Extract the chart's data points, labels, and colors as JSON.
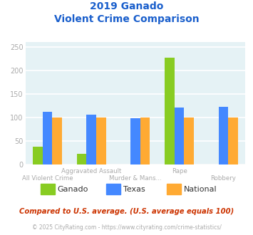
{
  "title_line1": "2019 Ganado",
  "title_line2": "Violent Crime Comparison",
  "categories": [
    "All Violent Crime",
    "Aggravated Assault",
    "Murder & Mans...",
    "Rape",
    "Robbery"
  ],
  "series": {
    "Ganado": [
      38,
      22,
      0,
      227,
      0
    ],
    "Texas": [
      112,
      106,
      98,
      121,
      123
    ],
    "National": [
      100,
      100,
      100,
      100,
      100
    ]
  },
  "colors": {
    "Ganado": "#88cc22",
    "Texas": "#4488ff",
    "National": "#ffaa33"
  },
  "ylim": [
    0,
    260
  ],
  "yticks": [
    0,
    50,
    100,
    150,
    200,
    250
  ],
  "bar_width": 0.22,
  "background_color": "#e5f2f5",
  "grid_color": "#ffffff",
  "title_color": "#1a5fcc",
  "axis_label_color": "#aaaaaa",
  "footnote1": "Compared to U.S. average. (U.S. average equals 100)",
  "footnote2": "© 2025 CityRating.com - https://www.cityrating.com/crime-statistics/",
  "footnote1_color": "#cc3300",
  "footnote2_color": "#aaaaaa",
  "legend_label_color": "#333333"
}
